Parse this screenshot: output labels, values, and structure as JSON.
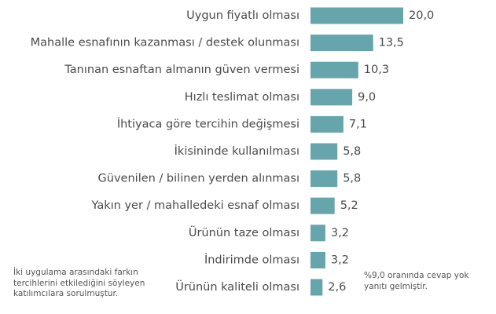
{
  "chart_data": {
    "type": "bar",
    "orientation": "horizontal",
    "categories": [
      "Uygun fiyatlı olması",
      "Mahalle esnafının kazanması / destek olunması",
      "Tanınan esnaftan almanın güven vermesi",
      "Hızlı teslimat olması",
      "İhtiyaca göre tercihin değişmesi",
      "İkisininde kullanılması",
      "Güvenilen / bilinen yerden alınması",
      "Yakın yer / mahalledeki esnaf  olması",
      "Ürünün taze olması",
      "İndirimde olması",
      "Ürünün kaliteli olması"
    ],
    "values": [
      20.0,
      13.5,
      10.3,
      9.0,
      7.1,
      5.8,
      5.8,
      5.2,
      3.2,
      3.2,
      2.6
    ],
    "value_labels": [
      "20,0",
      "13,5",
      "10,3",
      "9,0",
      "7,1",
      "5,8",
      "5,8",
      "5,2",
      "3,2",
      "3,2",
      "2,6"
    ],
    "title": "",
    "xlabel": "",
    "ylabel": "",
    "xlim": [
      0,
      20
    ],
    "grid": false,
    "legend": "none",
    "bar_color": "#66a5ab"
  },
  "notes": {
    "left": "İki uygulama arasındaki farkın tercihlerini etkilediğini söyleyen katılımcılara sorulmuştur.",
    "right": "%9,0 oranında cevap yok yanıtı gelmiştir."
  }
}
